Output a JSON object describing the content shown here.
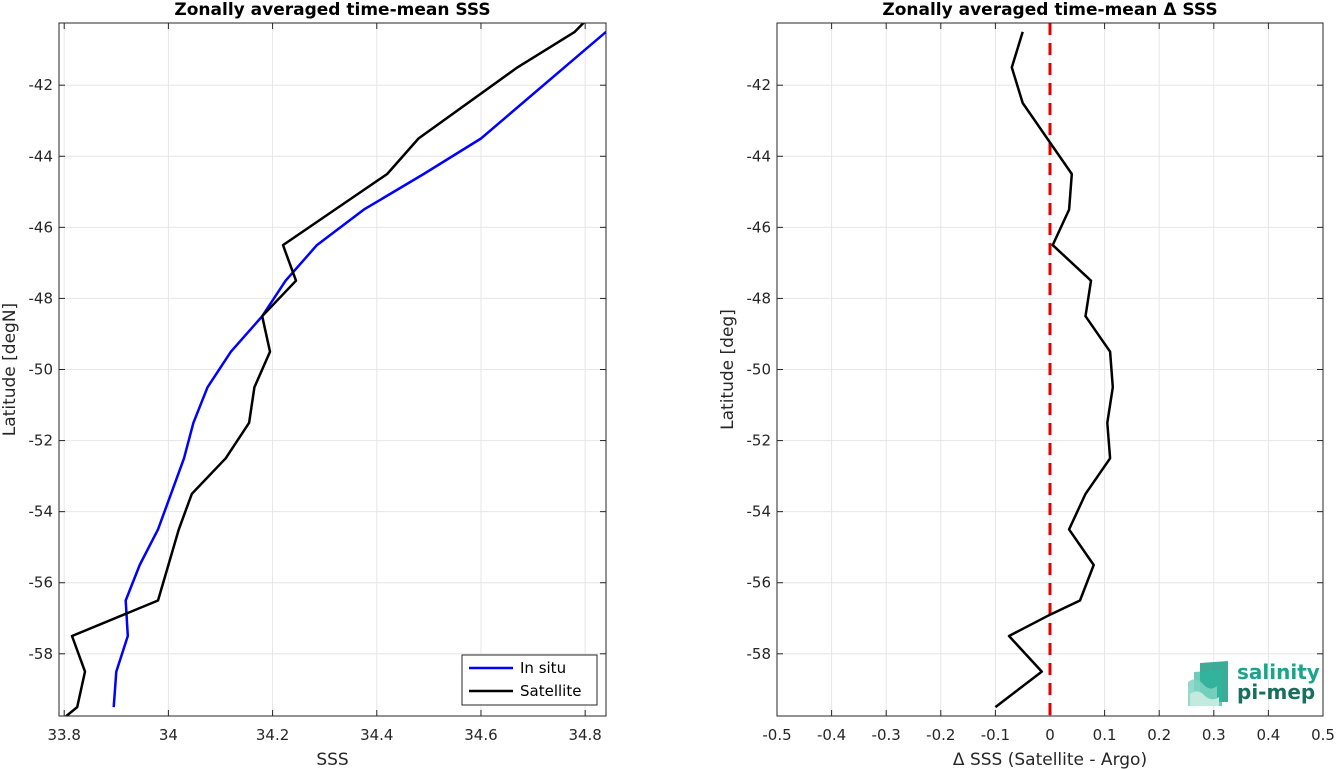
{
  "chart_data": [
    {
      "type": "line",
      "title": "Zonally averaged time-mean SSS",
      "xlabel": "SSS",
      "ylabel": "Latitude [degN]",
      "xlim": [
        33.79,
        34.84
      ],
      "ylim": [
        -59.75,
        -40.25
      ],
      "xticks": [
        33.8,
        34,
        34.2,
        34.4,
        34.6,
        34.8
      ],
      "xtick_labels": [
        "33.8",
        "34",
        "34.2",
        "34.4",
        "34.6",
        "34.8"
      ],
      "yticks": [
        -58,
        -56,
        -54,
        -52,
        -50,
        -48,
        -46,
        -44,
        -42
      ],
      "ytick_labels": [
        "-58",
        "-56",
        "-54",
        "-52",
        "-50",
        "-48",
        "-46",
        "-44",
        "-42"
      ],
      "grid": true,
      "legend_location": "bottom-right",
      "series": [
        {
          "name": "In situ",
          "color": "#0000ff",
          "x": [
            33.895,
            33.9,
            33.922,
            33.918,
            33.945,
            33.98,
            34.005,
            34.03,
            34.048,
            34.075,
            34.12,
            34.18,
            34.225,
            34.285,
            34.375,
            34.49,
            34.6,
            34.76,
            34.84
          ],
          "y": [
            -59.5,
            -58.5,
            -57.5,
            -56.5,
            -55.5,
            -54.5,
            -53.5,
            -52.5,
            -51.5,
            -50.5,
            -49.5,
            -48.5,
            -47.5,
            -46.5,
            -45.5,
            -44.5,
            -43.5,
            -41.5,
            -40.5
          ]
        },
        {
          "name": "Satellite",
          "color": "#000000",
          "x": [
            33.8,
            33.825,
            33.84,
            33.815,
            33.98,
            34.0,
            34.02,
            34.045,
            34.11,
            34.155,
            34.165,
            34.195,
            34.18,
            34.245,
            34.22,
            34.42,
            34.48,
            34.67,
            34.78,
            34.8
          ],
          "y": [
            -59.8,
            -59.5,
            -58.5,
            -57.5,
            -56.5,
            -55.5,
            -54.5,
            -53.5,
            -52.5,
            -51.5,
            -50.5,
            -49.5,
            -48.5,
            -47.5,
            -46.5,
            -44.5,
            -43.5,
            -41.5,
            -40.5,
            -40.2
          ]
        }
      ]
    },
    {
      "type": "line",
      "title": "Zonally averaged time-mean Δ SSS",
      "xlabel": "Δ SSS (Satellite - Argo)",
      "ylabel": "Latitude [deg]",
      "xlim": [
        -0.5,
        0.5
      ],
      "ylim": [
        -59.75,
        -40.25
      ],
      "xticks": [
        -0.5,
        -0.4,
        -0.3,
        -0.2,
        -0.1,
        0,
        0.1,
        0.2,
        0.3,
        0.4,
        0.5
      ],
      "xtick_labels": [
        "-0.5",
        "-0.4",
        "-0.3",
        "-0.2",
        "-0.1",
        "0",
        "0.1",
        "0.2",
        "0.3",
        "0.4",
        "0.5"
      ],
      "yticks": [
        -58,
        -56,
        -54,
        -52,
        -50,
        -48,
        -46,
        -44,
        -42
      ],
      "ytick_labels": [
        "-58",
        "-56",
        "-54",
        "-52",
        "-50",
        "-48",
        "-46",
        "-44",
        "-42"
      ],
      "grid": true,
      "reference_line": {
        "x": 0,
        "color": "#e00000",
        "style": "dashed"
      },
      "series": [
        {
          "color": "#000000",
          "x": [
            -0.1,
            -0.015,
            -0.075,
            0.0,
            0.055,
            0.08,
            0.035,
            0.065,
            0.11,
            0.105,
            0.115,
            0.11,
            0.065,
            0.075,
            0.005,
            0.035,
            0.04,
            -0.05,
            -0.07,
            -0.05
          ],
          "y": [
            -59.5,
            -58.5,
            -57.5,
            -56.9,
            -56.5,
            -55.5,
            -54.5,
            -53.5,
            -52.5,
            -51.5,
            -50.5,
            -49.5,
            -48.5,
            -47.5,
            -46.5,
            -45.5,
            -44.5,
            -42.5,
            -41.5,
            -40.5
          ]
        }
      ]
    }
  ],
  "logo": {
    "line1": "salinity",
    "line2": "pi-mep",
    "color1": "#1aa58a",
    "color2": "#1a6e5e"
  }
}
